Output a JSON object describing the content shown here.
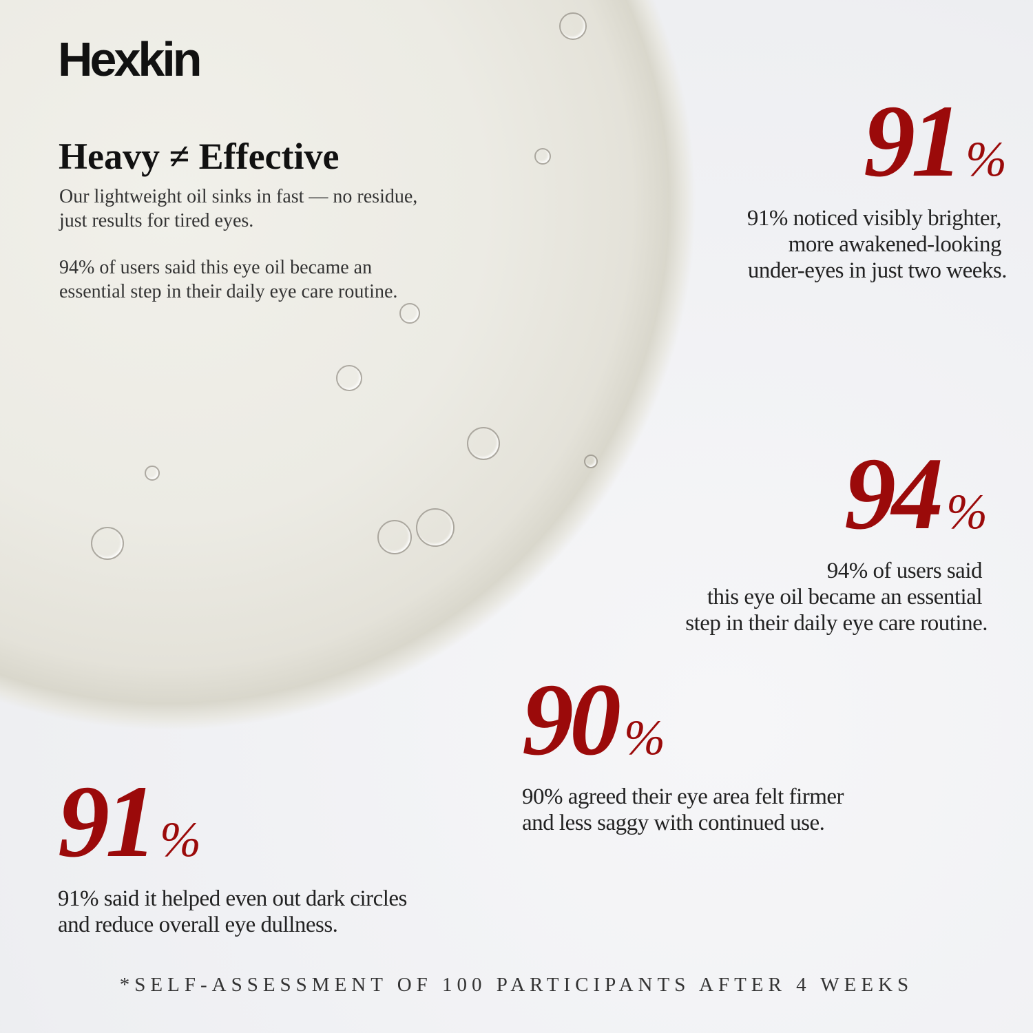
{
  "brand": "Hexkin",
  "headline": "Heavy ≠ Effective",
  "intro": {
    "line1": "Our lightweight oil sinks in fast — no residue,",
    "line2": "just results for tired eyes.",
    "line3": "94% of users said this eye oil became an",
    "line4": "essential step in their daily eye care routine."
  },
  "accent_color": "#9b0a0a",
  "stats": [
    {
      "value": "91",
      "unit": "%",
      "lines": [
        "91% noticed visibly brighter,",
        "more awakened-looking",
        "under-eyes in just two weeks."
      ]
    },
    {
      "value": "94",
      "unit": "%",
      "lines": [
        "94% of users said",
        "this eye oil became an essential",
        "step in their daily eye care routine."
      ]
    },
    {
      "value": "90",
      "unit": "%",
      "lines": [
        "90% agreed their eye area felt firmer",
        "and less saggy  with continued use."
      ]
    },
    {
      "value": "91",
      "unit": "%",
      "lines": [
        "91% said it helped even out dark circles",
        "and reduce overall eye dullness."
      ]
    }
  ],
  "footnote": "*SELF-ASSESSMENT OF 100 PARTICIPANTS AFTER 4 WEEKS"
}
